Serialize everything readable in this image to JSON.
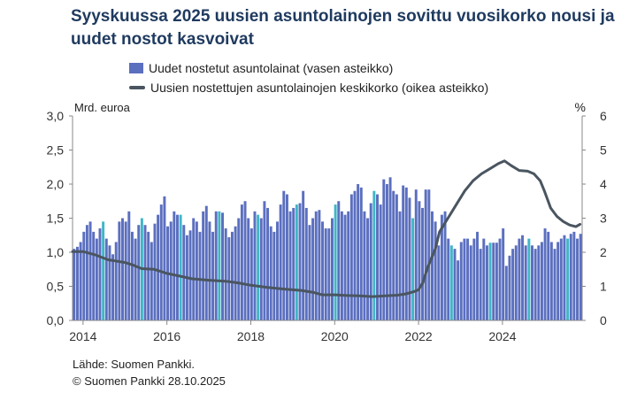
{
  "chart_data": {
    "type": "bar+line",
    "title": "Syyskuussa 2025 uusien asuntolainojen sovittu vuosikorko nousi ja uudet nostot kasvoivat",
    "left_axis_label": "Mrd. euroa",
    "right_axis_label": "%",
    "left_ylim": [
      0,
      3
    ],
    "right_ylim": [
      0,
      6
    ],
    "left_ticks": [
      "0,0",
      "0,5",
      "1,0",
      "1,5",
      "2,0",
      "2,5",
      "3,0"
    ],
    "right_ticks": [
      "0",
      "1",
      "2",
      "3",
      "4",
      "5",
      "6"
    ],
    "x_ticks": [
      "2014",
      "2016",
      "2018",
      "2020",
      "2022",
      "2024"
    ],
    "x_start_year": 2013.75,
    "x_end_year": 2025.9,
    "grid": false,
    "legend_position": "top",
    "series": [
      {
        "name": "Uudet nostetut asuntolainat (vasen asteikko)",
        "kind": "bar",
        "axis": "left",
        "color": "#5b6fbf",
        "highlight_color": "#3fb6c8",
        "values": [
          1.05,
          1.08,
          1.15,
          1.3,
          1.4,
          1.45,
          1.3,
          1.2,
          1.35,
          1.45,
          1.2,
          1.1,
          0.97,
          1.15,
          1.45,
          1.5,
          1.45,
          1.6,
          1.3,
          1.2,
          1.4,
          1.5,
          1.4,
          1.3,
          1.15,
          1.42,
          1.55,
          1.7,
          1.82,
          1.38,
          1.45,
          1.6,
          1.55,
          1.55,
          1.4,
          1.25,
          1.32,
          1.5,
          1.45,
          1.3,
          1.6,
          1.68,
          1.45,
          1.3,
          1.6,
          1.6,
          1.58,
          1.35,
          1.22,
          1.3,
          1.38,
          1.5,
          1.7,
          1.75,
          1.5,
          1.35,
          1.6,
          1.55,
          1.5,
          1.75,
          1.65,
          1.38,
          1.3,
          1.45,
          1.7,
          1.9,
          1.85,
          1.6,
          1.65,
          1.7,
          1.72,
          1.9,
          1.65,
          1.4,
          1.5,
          1.6,
          1.62,
          1.45,
          1.35,
          1.35,
          1.5,
          1.7,
          1.75,
          1.6,
          1.55,
          1.6,
          1.85,
          1.9,
          2.0,
          1.95,
          1.6,
          1.5,
          1.72,
          1.9,
          1.85,
          1.7,
          2.07,
          2.0,
          2.1,
          1.9,
          1.85,
          1.6,
          1.98,
          1.95,
          1.8,
          1.5,
          1.92,
          1.75,
          1.65,
          1.92,
          1.92,
          1.6,
          1.45,
          1.1,
          1.55,
          1.6,
          1.2,
          1.1,
          1.05,
          0.88,
          1.15,
          1.2,
          1.2,
          1.1,
          1.2,
          1.3,
          1.05,
          1.2,
          1.1,
          1.14,
          1.14,
          1.14,
          1.2,
          1.35,
          0.8,
          0.95,
          1.05,
          1.1,
          1.2,
          1.25,
          1.1,
          1.2,
          1.1,
          1.05,
          1.1,
          1.15,
          1.35,
          1.3,
          1.15,
          1.05,
          1.15,
          1.2,
          1.25,
          1.2,
          1.27,
          1.3,
          1.2,
          1.27
        ],
        "highlight_indices": [
          9,
          21,
          33,
          45,
          57,
          69,
          81,
          93,
          105,
          117,
          129,
          141,
          153
        ]
      },
      {
        "name": "Uusien nostettujen asuntolainojen keskikorko (oikea asteikko)",
        "kind": "line",
        "axis": "right",
        "color": "#4a5560",
        "points": [
          [
            2013.75,
            2.02
          ],
          [
            2014.0,
            2.02
          ],
          [
            2014.3,
            1.92
          ],
          [
            2014.6,
            1.78
          ],
          [
            2015.0,
            1.7
          ],
          [
            2015.2,
            1.62
          ],
          [
            2015.4,
            1.52
          ],
          [
            2015.7,
            1.5
          ],
          [
            2016.0,
            1.38
          ],
          [
            2016.3,
            1.3
          ],
          [
            2016.6,
            1.22
          ],
          [
            2017.0,
            1.18
          ],
          [
            2017.4,
            1.15
          ],
          [
            2017.7,
            1.1
          ],
          [
            2018.0,
            1.03
          ],
          [
            2018.4,
            0.97
          ],
          [
            2018.8,
            0.92
          ],
          [
            2019.2,
            0.88
          ],
          [
            2019.5,
            0.82
          ],
          [
            2019.7,
            0.75
          ],
          [
            2020.0,
            0.75
          ],
          [
            2020.3,
            0.73
          ],
          [
            2020.6,
            0.72
          ],
          [
            2020.9,
            0.7
          ],
          [
            2021.2,
            0.72
          ],
          [
            2021.5,
            0.74
          ],
          [
            2021.7,
            0.78
          ],
          [
            2021.9,
            0.85
          ],
          [
            2022.0,
            0.9
          ],
          [
            2022.1,
            1.1
          ],
          [
            2022.2,
            1.5
          ],
          [
            2022.3,
            1.8
          ],
          [
            2022.4,
            2.1
          ],
          [
            2022.5,
            2.6
          ],
          [
            2022.7,
            3.0
          ],
          [
            2022.9,
            3.4
          ],
          [
            2023.1,
            3.8
          ],
          [
            2023.3,
            4.1
          ],
          [
            2023.5,
            4.3
          ],
          [
            2023.7,
            4.45
          ],
          [
            2023.9,
            4.6
          ],
          [
            2024.05,
            4.68
          ],
          [
            2024.2,
            4.55
          ],
          [
            2024.4,
            4.4
          ],
          [
            2024.6,
            4.38
          ],
          [
            2024.75,
            4.3
          ],
          [
            2024.9,
            4.1
          ],
          [
            2025.0,
            3.8
          ],
          [
            2025.15,
            3.3
          ],
          [
            2025.3,
            3.05
          ],
          [
            2025.45,
            2.9
          ],
          [
            2025.6,
            2.8
          ],
          [
            2025.75,
            2.75
          ],
          [
            2025.85,
            2.82
          ]
        ]
      }
    ]
  },
  "footer": {
    "source_prefix": "Lähde: ",
    "source_name": "Suomen Pankki.",
    "copyright": "© Suomen Pankki 28.10.2025"
  }
}
